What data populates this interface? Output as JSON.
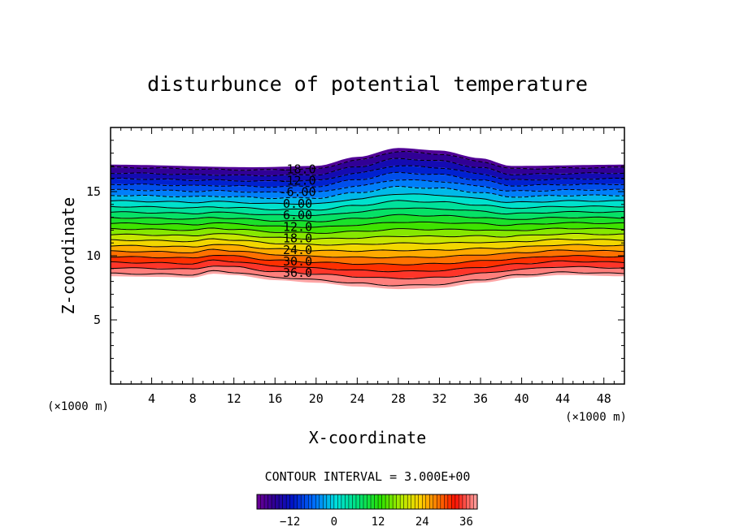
{
  "chart_data": {
    "type": "contour",
    "title": "disturbunce of potential temperature",
    "xlabel": "X-coordinate",
    "ylabel": "Z-coordinate",
    "x_unit": "(×1000 m)",
    "y_unit": "(×1000 m)",
    "xlim": [
      0,
      50
    ],
    "ylim": [
      0,
      20
    ],
    "xticks": [
      4,
      8,
      12,
      16,
      20,
      24,
      28,
      32,
      36,
      40,
      44,
      48
    ],
    "yticks": [
      5,
      10,
      15
    ],
    "contour_interval_text": "CONTOUR INTERVAL = 3.000E+00",
    "contour_min": -18,
    "contour_max": 39,
    "contour_step": 3,
    "contour_labels": [
      {
        "text": "-18.0",
        "value": -18
      },
      {
        "text": "-12.0",
        "value": -12
      },
      {
        "text": "-6.00",
        "value": -6
      },
      {
        "text": "0.00",
        "value": 0
      },
      {
        "text": "6.00",
        "value": 6
      },
      {
        "text": "12.0",
        "value": 12
      },
      {
        "text": "18.0",
        "value": 18
      },
      {
        "text": "24.0",
        "value": 24
      },
      {
        "text": "30.0",
        "value": 30
      },
      {
        "text": "36.0",
        "value": 36
      }
    ],
    "upper_edge_km": [
      [
        0,
        17.1
      ],
      [
        14,
        16.9
      ],
      [
        20,
        17.0
      ],
      [
        24,
        17.7
      ],
      [
        28,
        18.4
      ],
      [
        32,
        18.2
      ],
      [
        36,
        17.6
      ],
      [
        39,
        17.0
      ],
      [
        50,
        17.1
      ]
    ],
    "lower_edge_km": [
      [
        0,
        8.4
      ],
      [
        5,
        8.35
      ],
      [
        8,
        8.3
      ],
      [
        10,
        8.6
      ],
      [
        12,
        8.5
      ],
      [
        16,
        8.1
      ],
      [
        20,
        7.9
      ],
      [
        24,
        7.6
      ],
      [
        28,
        7.4
      ],
      [
        32,
        7.5
      ],
      [
        36,
        7.9
      ],
      [
        40,
        8.3
      ],
      [
        44,
        8.5
      ],
      [
        50,
        8.4
      ]
    ],
    "colorbar": {
      "ticks": [
        -12,
        0,
        12,
        24,
        36
      ],
      "min": -21,
      "max": 39
    }
  }
}
